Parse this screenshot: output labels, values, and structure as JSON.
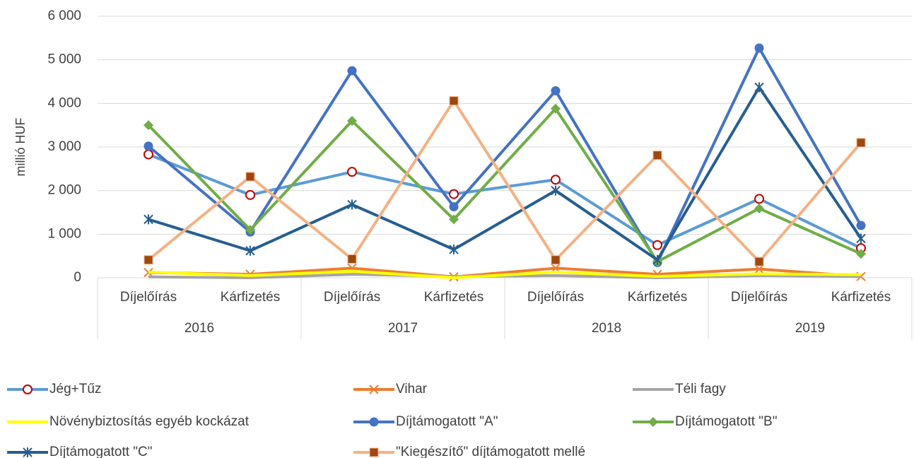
{
  "chart_data": {
    "type": "line",
    "y_label": "millió HUF",
    "categories": [
      "Díjelőírás",
      "Kárfizetés",
      "Díjelőírás",
      "Kárfizetés",
      "Díjelőírás",
      "Kárfizetés",
      "Díjelőírás",
      "Kárfizetés"
    ],
    "groups": [
      "2016",
      "2017",
      "2018",
      "2019"
    ],
    "ylim": [
      0,
      6000
    ],
    "yticks": [
      0,
      {
        "value": 1000,
        "label": "1 000"
      },
      {
        "value": 2000,
        "label": "2 000"
      },
      {
        "value": 3000,
        "label": "3 000"
      },
      {
        "value": 4000,
        "label": "4 000"
      },
      {
        "value": 5000,
        "label": "5 000"
      },
      {
        "value": 6000,
        "label": "6 000"
      }
    ],
    "grid": true,
    "legend": "bottom",
    "series": [
      {
        "name": "Jég+Tűz",
        "color": "#5b9bd5",
        "marker": "circle",
        "marker_color": "#c00000",
        "values": [
          2830,
          1900,
          2430,
          1920,
          2250,
          750,
          1810,
          680
        ]
      },
      {
        "name": "Vihar",
        "color": "#ed7d31",
        "marker": "x",
        "marker_color": "#ed7d31",
        "values": [
          120,
          80,
          220,
          20,
          220,
          80,
          200,
          30
        ]
      },
      {
        "name": "Téli fagy",
        "color": "#a5a5a5",
        "marker": "none",
        "marker_color": "#a5a5a5",
        "values": [
          20,
          0,
          80,
          30,
          50,
          0,
          50,
          30
        ]
      },
      {
        "name": "Növénybiztosítás egyéb kockázat",
        "color": "#ffff00",
        "marker": "none",
        "marker_color": "#ffff00",
        "values": [
          130,
          50,
          150,
          0,
          130,
          30,
          90,
          70
        ]
      },
      {
        "name": "Díjtámogatott \"A\"",
        "color": "#4472c4",
        "marker": "dot",
        "marker_color": "#4472c4",
        "values": [
          3020,
          1050,
          4750,
          1630,
          4290,
          350,
          5270,
          1200
        ]
      },
      {
        "name": "Díjtámogatott \"B\"",
        "color": "#70ad47",
        "marker": "diamond",
        "marker_color": "#70ad47",
        "values": [
          3500,
          1100,
          3600,
          1340,
          3880,
          370,
          1590,
          550
        ]
      },
      {
        "name": "Díjtámogatott \"C\"",
        "color": "#255e91",
        "marker": "star",
        "marker_color": "#255e91",
        "values": [
          1340,
          620,
          1680,
          650,
          2000,
          410,
          4370,
          900
        ]
      },
      {
        "name": "\"Kiegészítő\" díjtámogatott mellé",
        "color": "#f4b183",
        "marker": "square",
        "marker_color": "#9e480e",
        "values": [
          410,
          2320,
          430,
          4060,
          410,
          2810,
          370,
          3100
        ]
      }
    ]
  }
}
